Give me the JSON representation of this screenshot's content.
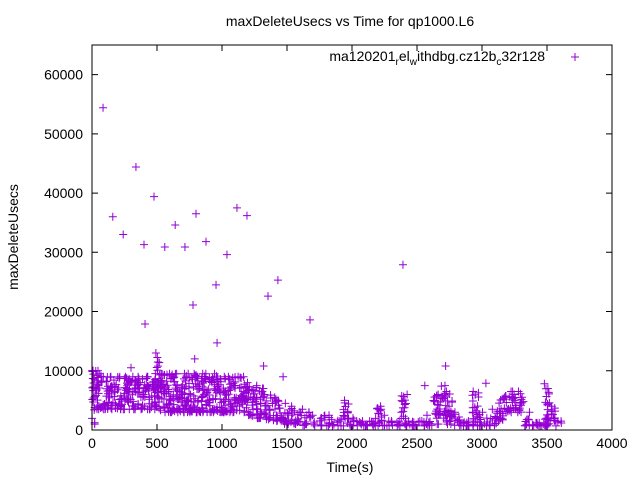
{
  "chart_data": {
    "type": "scatter",
    "title": "maxDeleteUsecs vs Time for qp1000.L6",
    "xlabel": "Time(s)",
    "ylabel": "maxDeleteUsecs",
    "xlim": [
      0,
      4000
    ],
    "ylim": [
      0,
      65000
    ],
    "xticks": [
      0,
      500,
      1000,
      1500,
      2000,
      2500,
      3000,
      3500,
      4000
    ],
    "yticks": [
      0,
      10000,
      20000,
      30000,
      40000,
      50000,
      60000
    ],
    "grid": false,
    "legend": {
      "position": "top-right",
      "label_parts": [
        "ma120201",
        "r",
        "el",
        "w",
        "ithdbg.cz12b",
        "c",
        "32r128"
      ]
    },
    "series": [
      {
        "name": "ma120201_rel_withdbg.cz12b_c32r128",
        "color": "#9400d3",
        "marker": "plus",
        "outliers": [
          [
            85,
            54400
          ],
          [
            338,
            44400
          ],
          [
            160,
            36000
          ],
          [
            240,
            33000
          ],
          [
            400,
            31300
          ],
          [
            477,
            39400
          ],
          [
            560,
            30900
          ],
          [
            640,
            34600
          ],
          [
            715,
            30900
          ],
          [
            800,
            36500
          ],
          [
            877,
            31800
          ],
          [
            777,
            21100
          ],
          [
            954,
            24500
          ],
          [
            1038,
            29600
          ],
          [
            1115,
            37500
          ],
          [
            1192,
            36200
          ],
          [
            1354,
            22600
          ],
          [
            1430,
            25300
          ],
          [
            408,
            17900
          ],
          [
            1677,
            18600
          ],
          [
            2392,
            27900
          ],
          [
            962,
            14700
          ],
          [
            1470,
            9000
          ],
          [
            300,
            10500
          ],
          [
            790,
            12000
          ],
          [
            1320,
            10800
          ],
          [
            2720,
            10800
          ],
          [
            2560,
            7500
          ],
          [
            3480,
            7800
          ],
          [
            3030,
            7900
          ]
        ],
        "band": {
          "x": [
            0,
            50,
            100,
            150,
            200,
            250,
            300,
            350,
            400,
            450,
            500,
            550,
            600,
            650,
            700,
            750,
            800,
            850,
            900,
            950,
            1000,
            1050,
            1100,
            1150,
            1200,
            1250,
            1300,
            1350,
            1400,
            1450,
            1500,
            1550,
            1600,
            1650,
            1700,
            1750,
            1800,
            1850,
            1900,
            1950,
            2000,
            2050,
            2100,
            2150,
            2200,
            2250,
            2300,
            2350,
            2400,
            2450,
            2500,
            2550,
            2600,
            2650,
            2700,
            2750,
            2800,
            2850,
            2900,
            2950,
            3000,
            3050,
            3100,
            3150,
            3200,
            3250,
            3300,
            3350,
            3400,
            3450,
            3500,
            3550,
            3600
          ],
          "lo": [
            1000,
            3500,
            3500,
            3500,
            3500,
            3500,
            3500,
            3500,
            3500,
            3500,
            3500,
            3000,
            3000,
            3000,
            3000,
            3000,
            3000,
            3000,
            3000,
            3000,
            3000,
            3000,
            3000,
            3000,
            2500,
            2000,
            2000,
            1800,
            1500,
            1500,
            1000,
            1000,
            800,
            800,
            700,
            700,
            700,
            700,
            700,
            700,
            700,
            700,
            700,
            700,
            700,
            700,
            700,
            700,
            700,
            700,
            700,
            700,
            800,
            1000,
            2000,
            1000,
            800,
            700,
            700,
            700,
            700,
            700,
            800,
            1500,
            3000,
            3500,
            3000,
            700,
            700,
            700,
            700,
            700,
            700
          ],
          "hi": [
            11000,
            10000,
            9000,
            9000,
            9000,
            9000,
            9000,
            9000,
            9000,
            9000,
            13000,
            9500,
            9500,
            9500,
            9500,
            9500,
            9500,
            9500,
            9500,
            9500,
            9000,
            9000,
            9000,
            9000,
            8000,
            7500,
            7000,
            6000,
            5500,
            5000,
            4500,
            4000,
            3500,
            3000,
            2500,
            2000,
            2500,
            1800,
            1800,
            5000,
            2000,
            1500,
            1500,
            1500,
            4000,
            2500,
            1500,
            1500,
            6000,
            1500,
            1500,
            1500,
            2500,
            6000,
            7500,
            6500,
            3000,
            1500,
            1500,
            6500,
            3000,
            2000,
            3500,
            5500,
            6500,
            6500,
            6500,
            3000,
            1200,
            1200,
            7000,
            4000,
            1500
          ]
        }
      }
    ]
  }
}
